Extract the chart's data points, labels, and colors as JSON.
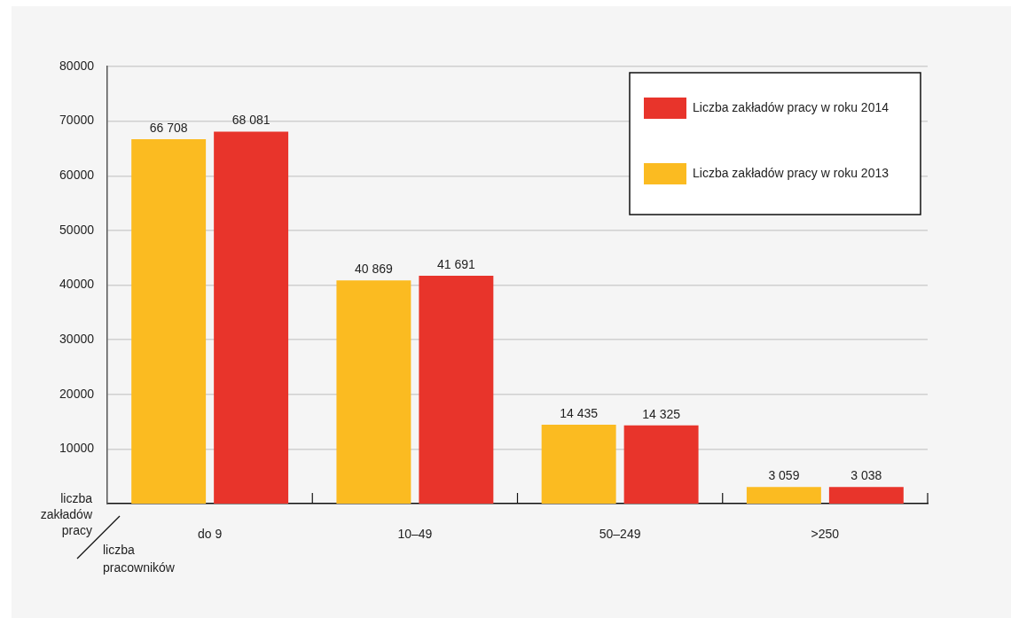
{
  "chart_data": {
    "type": "bar",
    "categories": [
      "do 9",
      "10–49",
      "50–249",
      ">250"
    ],
    "series": [
      {
        "name": "Liczba zakładów pracy w roku 2013",
        "color": "#fbbb21",
        "values": [
          66708,
          40869,
          14435,
          3059
        ],
        "value_labels": [
          "66 708",
          "40 869",
          "14 435",
          "3 059"
        ]
      },
      {
        "name": "Liczba zakładów pracy w roku 2014",
        "color": "#e8342b",
        "values": [
          68081,
          41691,
          14325,
          3038
        ],
        "value_labels": [
          "68 081",
          "41 691",
          "14 325",
          "3 038"
        ]
      }
    ],
    "ylabel": "liczba zakładów pracy",
    "xlabel": "liczba pracowników",
    "ylim": [
      0,
      80000
    ],
    "yticks": [
      10000,
      20000,
      30000,
      40000,
      50000,
      60000,
      70000,
      80000
    ],
    "grid": "y",
    "legend": "top right"
  }
}
